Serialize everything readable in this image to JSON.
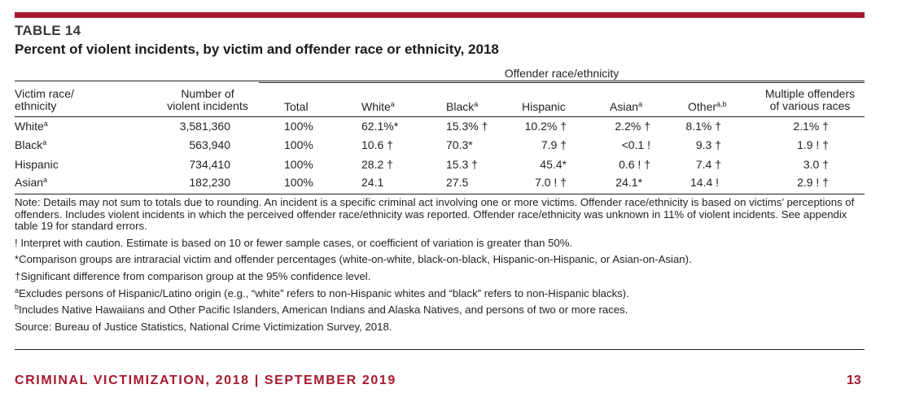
{
  "table_label": "TABLE 14",
  "table_title": "Percent of violent incidents, by victim and offender race or ethnicity, 2018",
  "spanner": "Offender race/ethnicity",
  "headers": {
    "victim_line1": "Victim race/",
    "victim_line2": "ethnicity",
    "number_line1": "Number of",
    "number_line2": "violent incidents",
    "total": "Total",
    "white": "White",
    "white_sup": "a",
    "black": "Black",
    "black_sup": "a",
    "hispanic": "Hispanic",
    "asian": "Asian",
    "asian_sup": "a",
    "other": "Other",
    "other_sup": "a,b",
    "multiple_line1": "Multiple offenders",
    "multiple_line2": "of various races"
  },
  "rows": [
    {
      "victim": "White",
      "victim_sup": "a",
      "number": "3,581,360",
      "total": "100%",
      "white": "62.1%*",
      "black": "15.3% †",
      "hispanic": "10.2% †",
      "asian": "2.2% †",
      "other": "8.1% †",
      "multiple": "2.1% †"
    },
    {
      "victim": "Black",
      "victim_sup": "a",
      "number": "563,940",
      "total": "100%",
      "white": "10.6 †",
      "black": "70.3*",
      "hispanic": "7.9 †",
      "asian": "<0.1 !",
      "other": "9.3 †",
      "multiple": "1.9 ! †"
    },
    {
      "victim": "Hispanic",
      "victim_sup": "",
      "number": "734,410",
      "total": "100%",
      "white": "28.2 †",
      "black": "15.3 †",
      "hispanic": "45.4*",
      "asian": "0.6 ! †",
      "other": "7.4 †",
      "multiple": "3.0 †"
    },
    {
      "victim": "Asian",
      "victim_sup": "a",
      "number": "182,230",
      "total": "100%",
      "white": "24.1",
      "black": "27.5",
      "hispanic": "7.0 ! †",
      "asian": "24.1*",
      "other": "14.4 !",
      "multiple": "2.9 ! †"
    }
  ],
  "notes": {
    "note": "Note: Details may not sum to totals due to rounding. An incident is a specific criminal act involving one or more victims. Offender race/ethnicity is based on victims’ perceptions of offenders. Includes violent incidents in which the perceived offender race/ethnicity was reported. Offender race/ethnicity was unknown in 11% of violent incidents. See appendix table 19 for standard errors.",
    "caution": "! Interpret with caution. Estimate is based on 10 or fewer sample cases, or coefficient of variation is greater than 50%.",
    "comparison": "*Comparison groups are intraracial victim and offender percentages (white-on-white, black-on-black, Hispanic-on-Hispanic, or Asian-on-Asian).",
    "significant": "†Significant difference from comparison group at the 95% confidence level.",
    "a_marker": "a",
    "a_text": "Excludes persons of Hispanic/Latino origin (e.g., “white” refers to non-Hispanic whites and “black” refers to non-Hispanic blacks).",
    "b_marker": "b",
    "b_text": "Includes Native Hawaiians and Other Pacific Islanders, American Indians and Alaska Natives, and persons of two or more races.",
    "source": "Source: Bureau of Justice Statistics, National Crime Victimization Survey, 2018."
  },
  "footer": {
    "publication": "CRIMINAL VICTIMIZATION, 2018 | SEPTEMBER 2019",
    "page": "13"
  },
  "colors": {
    "accent": "#a6192e",
    "text": "#231f20"
  }
}
